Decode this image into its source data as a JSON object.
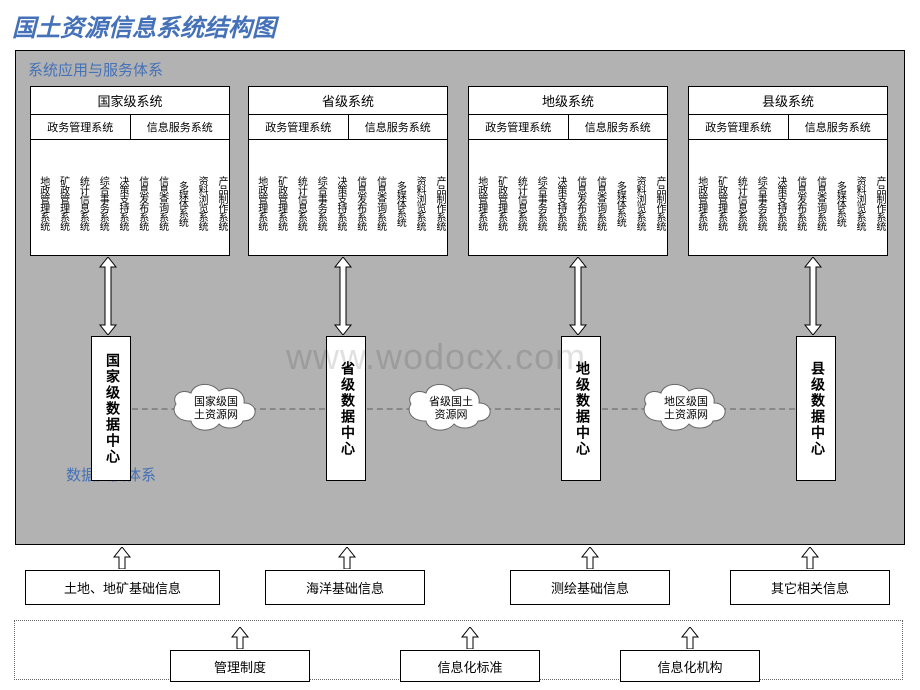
{
  "title": "国土资源信息系统结构图",
  "sections": {
    "top": "系统应用与服务体系",
    "bottom": "数据交换体系"
  },
  "systems": [
    {
      "title": "国家级系统"
    },
    {
      "title": "省级系统"
    },
    {
      "title": "地级系统"
    },
    {
      "title": "县级系统"
    }
  ],
  "system_sub_left": "政务管理系统",
  "system_sub_right": "信息服务系统",
  "system_cols": [
    "地政管理系统",
    "矿政管理系统",
    "统计信息系统",
    "综合事务系统",
    "决策支持系统",
    "信息发布系统",
    "信息查询系统",
    "多媒体系统",
    "资料浏览系统",
    "产品制作系统"
  ],
  "data_centers": [
    "国家级数据中心",
    "省级数据中心",
    "地级数据中心",
    "县级数据中心"
  ],
  "clouds": [
    "国家级国土资源网",
    "省级国土资源网",
    "地区级国土资源网"
  ],
  "info_sources": [
    "土地、地矿基础信息",
    "海洋基础信息",
    "测绘基础信息",
    "其它相关信息"
  ],
  "bottom_items": [
    "管理制度",
    "信息化标准",
    "信息化机构"
  ],
  "colors": {
    "title": "#4471b8",
    "label": "#4471b8",
    "frame_bg": "#b2b2b2",
    "box_bg": "#ffffff",
    "border": "#000000"
  },
  "watermark": "www.wodocx.com"
}
